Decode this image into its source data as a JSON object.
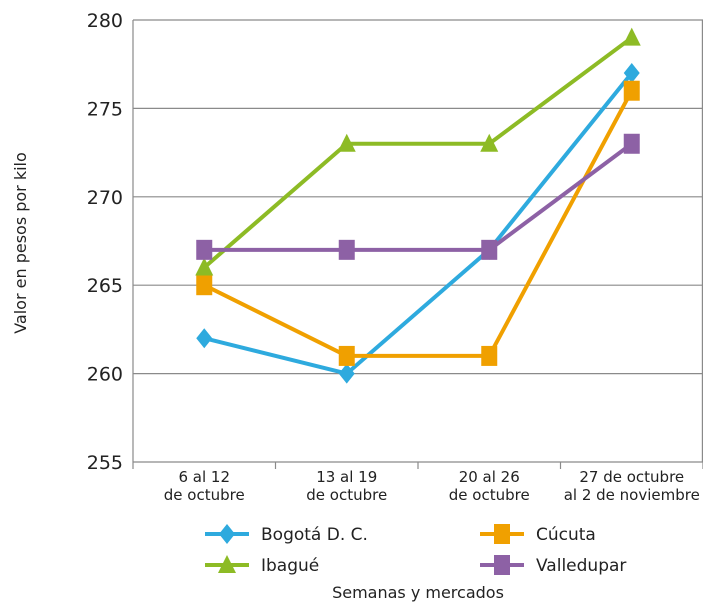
{
  "chart_data": {
    "type": "line",
    "title": "",
    "xlabel": "Semanas y mercados",
    "ylabel": "Valor en pesos por kilo",
    "ylim": [
      255,
      280
    ],
    "yticks": [
      255,
      260,
      265,
      270,
      275,
      280
    ],
    "grid": true,
    "legend_placement": "bottom",
    "categories": [
      [
        "6 al 12",
        "de octubre"
      ],
      [
        "13 al 19",
        "de octubre"
      ],
      [
        "20 al 26",
        "de octubre"
      ],
      [
        "27 de octubre",
        "al 2 de noviembre"
      ]
    ],
    "series": [
      {
        "name": "Bogotá D. C.",
        "values": [
          262,
          260,
          267,
          277
        ],
        "color": "#2eaade",
        "marker": "diamond"
      },
      {
        "name": "Cúcuta",
        "values": [
          265,
          261,
          261,
          276
        ],
        "color": "#f0a000",
        "marker": "square"
      },
      {
        "name": "Ibagué",
        "values": [
          266,
          273,
          273,
          279
        ],
        "color": "#8dbb25",
        "marker": "triangle"
      },
      {
        "name": "Valledupar",
        "values": [
          267,
          267,
          267,
          273
        ],
        "color": "#8d61a5",
        "marker": "square"
      }
    ]
  }
}
